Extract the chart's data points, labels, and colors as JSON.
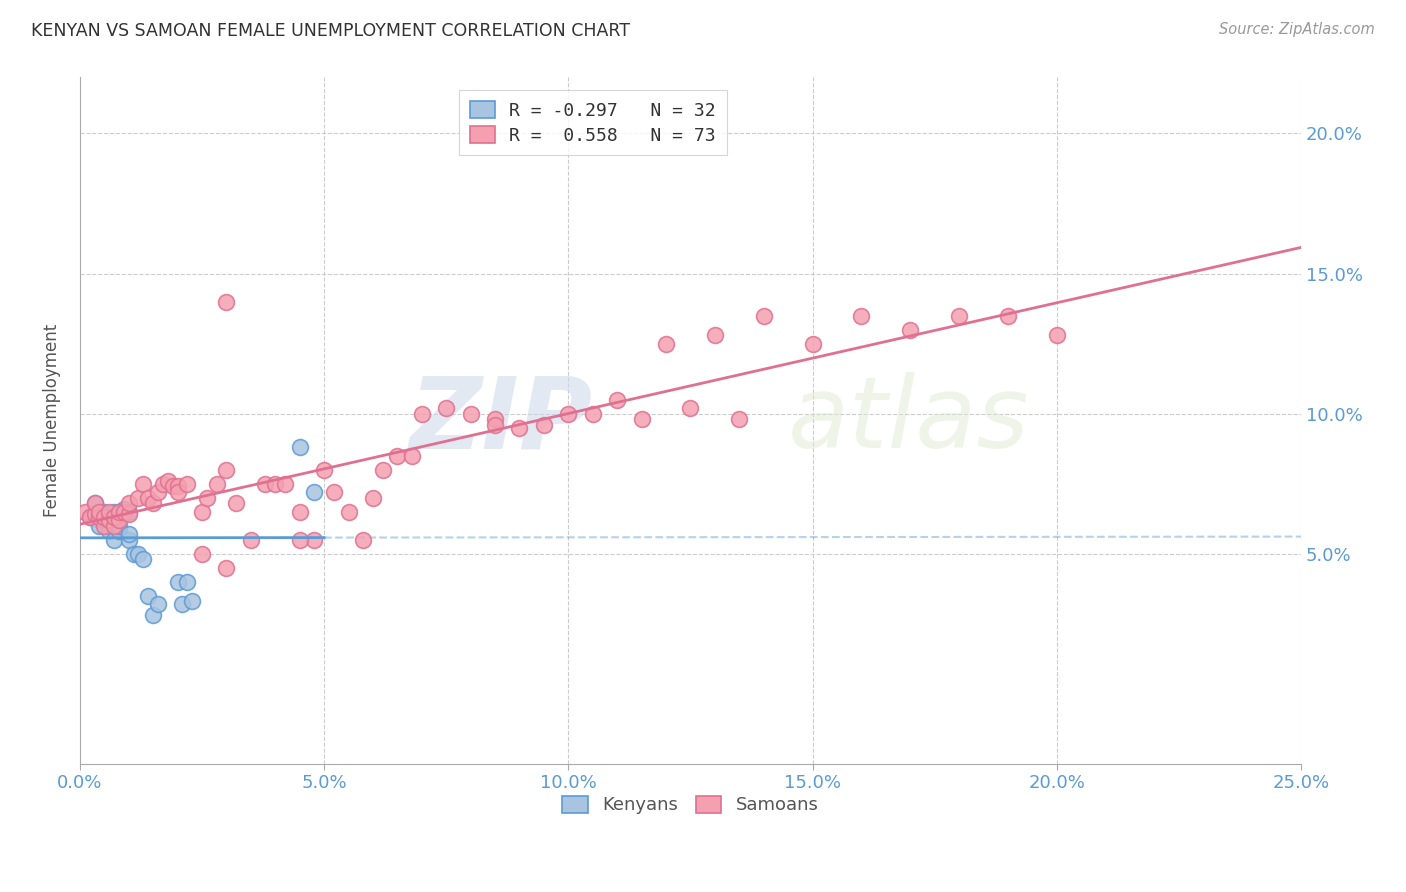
{
  "title": "KENYAN VS SAMOAN FEMALE UNEMPLOYMENT CORRELATION CHART",
  "source": "Source: ZipAtlas.com",
  "ylabel": "Female Unemployment",
  "ytick_labels": [
    "5.0%",
    "10.0%",
    "15.0%",
    "20.0%"
  ],
  "ytick_values": [
    0.05,
    0.1,
    0.15,
    0.2
  ],
  "xlim": [
    0.0,
    0.25
  ],
  "ylim": [
    -0.025,
    0.22
  ],
  "watermark_zip": "ZIP",
  "watermark_atlas": "atlas",
  "kenyan_color": "#a8c4e0",
  "samoan_color": "#f4a0b0",
  "kenyan_line_color": "#5b9bd5",
  "samoan_line_color": "#e07090",
  "background_color": "#ffffff",
  "kenyan_scatter_x": [
    0.002,
    0.003,
    0.004,
    0.004,
    0.005,
    0.005,
    0.006,
    0.006,
    0.006,
    0.007,
    0.007,
    0.007,
    0.008,
    0.008,
    0.008,
    0.009,
    0.009,
    0.01,
    0.01,
    0.01,
    0.011,
    0.012,
    0.013,
    0.014,
    0.015,
    0.016,
    0.02,
    0.021,
    0.022,
    0.023,
    0.045,
    0.048
  ],
  "kenyan_scatter_y": [
    0.063,
    0.068,
    0.062,
    0.06,
    0.062,
    0.065,
    0.063,
    0.06,
    0.058,
    0.063,
    0.065,
    0.055,
    0.065,
    0.058,
    0.06,
    0.064,
    0.066,
    0.055,
    0.057,
    0.065,
    0.05,
    0.05,
    0.048,
    0.035,
    0.028,
    0.032,
    0.04,
    0.032,
    0.04,
    0.033,
    0.088,
    0.072
  ],
  "samoan_scatter_x": [
    0.001,
    0.002,
    0.003,
    0.003,
    0.004,
    0.004,
    0.005,
    0.005,
    0.006,
    0.006,
    0.007,
    0.007,
    0.008,
    0.008,
    0.009,
    0.01,
    0.01,
    0.012,
    0.013,
    0.014,
    0.015,
    0.016,
    0.017,
    0.018,
    0.019,
    0.02,
    0.02,
    0.022,
    0.025,
    0.026,
    0.028,
    0.03,
    0.032,
    0.035,
    0.038,
    0.04,
    0.042,
    0.045,
    0.048,
    0.05,
    0.052,
    0.055,
    0.058,
    0.06,
    0.062,
    0.065,
    0.068,
    0.07,
    0.075,
    0.08,
    0.085,
    0.09,
    0.1,
    0.11,
    0.12,
    0.13,
    0.14,
    0.15,
    0.16,
    0.17,
    0.18,
    0.19,
    0.2,
    0.025,
    0.03,
    0.085,
    0.095,
    0.105,
    0.115,
    0.125,
    0.135,
    0.03,
    0.045
  ],
  "samoan_scatter_y": [
    0.065,
    0.063,
    0.064,
    0.068,
    0.063,
    0.065,
    0.06,
    0.063,
    0.062,
    0.065,
    0.06,
    0.063,
    0.062,
    0.065,
    0.065,
    0.064,
    0.068,
    0.07,
    0.075,
    0.07,
    0.068,
    0.072,
    0.075,
    0.076,
    0.074,
    0.074,
    0.072,
    0.075,
    0.065,
    0.07,
    0.075,
    0.08,
    0.068,
    0.055,
    0.075,
    0.075,
    0.075,
    0.065,
    0.055,
    0.08,
    0.072,
    0.065,
    0.055,
    0.07,
    0.08,
    0.085,
    0.085,
    0.1,
    0.102,
    0.1,
    0.098,
    0.095,
    0.1,
    0.105,
    0.125,
    0.128,
    0.135,
    0.125,
    0.135,
    0.13,
    0.135,
    0.135,
    0.128,
    0.05,
    0.045,
    0.096,
    0.096,
    0.1,
    0.098,
    0.102,
    0.098,
    0.14,
    0.055
  ]
}
